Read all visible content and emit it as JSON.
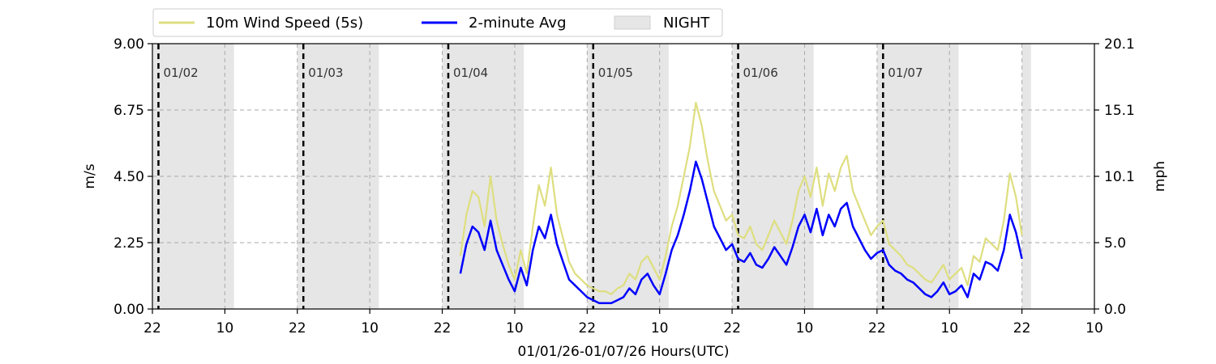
{
  "chart_data": {
    "type": "line",
    "xlabel": "01/01/26-01/07/26  Hours(UTC)",
    "ylabel_left": "m/s",
    "ylabel_right": "mph",
    "x_range_hours": [
      0,
      156
    ],
    "ylim": [
      0,
      9
    ],
    "y_ticks_left": [
      "0.00",
      "2.25",
      "4.50",
      "6.75",
      "9.00"
    ],
    "y_ticks_right": [
      "0.0",
      "5.0",
      "10.1",
      "15.1",
      "20.1"
    ],
    "x_tick_labels": [
      "22",
      "10",
      "22",
      "10",
      "22",
      "10",
      "22",
      "10",
      "22",
      "10",
      "22",
      "10",
      "22",
      "10"
    ],
    "day_labels": [
      "01/02",
      "01/03",
      "01/04",
      "01/05",
      "01/06",
      "01/07"
    ],
    "day_boundaries_hours": [
      1,
      25,
      49,
      73,
      97,
      121
    ],
    "night_periods_hours": [
      [
        0,
        13.5
      ],
      [
        24,
        37.5
      ],
      [
        48,
        61.5
      ],
      [
        72,
        85.5
      ],
      [
        96,
        109.5
      ],
      [
        120,
        133.5
      ],
      [
        144,
        145.5
      ]
    ],
    "legend": {
      "placement": "top",
      "items": [
        "10m Wind Speed (5s)",
        "2-minute Avg",
        "NIGHT"
      ]
    },
    "series": [
      {
        "name": "10m Wind Speed (5s)",
        "color": "#dede80",
        "x": [
          51,
          52,
          53,
          54,
          55,
          56,
          57,
          58,
          59,
          60,
          61,
          62,
          63,
          64,
          65,
          66,
          67,
          68,
          69,
          70,
          71,
          72,
          73,
          74,
          75,
          76,
          77,
          78,
          79,
          80,
          81,
          82,
          83,
          84,
          85,
          86,
          87,
          88,
          89,
          90,
          91,
          92,
          93,
          94,
          95,
          96,
          97,
          98,
          99,
          100,
          101,
          102,
          103,
          104,
          105,
          106,
          107,
          108,
          109,
          110,
          111,
          112,
          113,
          114,
          115,
          116,
          117,
          118,
          119,
          120,
          121,
          122,
          123,
          124,
          125,
          126,
          127,
          128,
          129,
          130,
          131,
          132,
          133,
          134,
          135,
          136,
          137,
          138,
          139,
          140,
          141,
          142,
          143,
          144
        ],
        "values": [
          1.8,
          3.2,
          4.0,
          3.8,
          2.8,
          4.5,
          3.0,
          2.2,
          1.5,
          1.0,
          2.0,
          1.2,
          2.8,
          4.2,
          3.5,
          4.8,
          3.2,
          2.4,
          1.6,
          1.2,
          1.0,
          0.8,
          0.7,
          0.6,
          0.6,
          0.5,
          0.7,
          0.8,
          1.2,
          1.0,
          1.6,
          1.8,
          1.4,
          1.0,
          1.8,
          2.8,
          3.5,
          4.5,
          5.5,
          7.0,
          6.2,
          5.0,
          4.0,
          3.5,
          3.0,
          3.2,
          2.5,
          2.4,
          2.8,
          2.2,
          2.0,
          2.5,
          3.0,
          2.6,
          2.2,
          3.0,
          4.0,
          4.5,
          3.8,
          4.8,
          3.5,
          4.6,
          4.0,
          4.8,
          5.2,
          4.0,
          3.5,
          3.0,
          2.5,
          2.8,
          3.0,
          2.2,
          2.0,
          1.8,
          1.5,
          1.4,
          1.2,
          1.0,
          0.9,
          1.2,
          1.5,
          1.0,
          1.2,
          1.4,
          0.8,
          1.8,
          1.6,
          2.4,
          2.2,
          2.0,
          3.0,
          4.6,
          3.8,
          2.5
        ]
      },
      {
        "name": "2-minute Avg",
        "color": "#0000ff",
        "x": [
          51,
          52,
          53,
          54,
          55,
          56,
          57,
          58,
          59,
          60,
          61,
          62,
          63,
          64,
          65,
          66,
          67,
          68,
          69,
          70,
          71,
          72,
          73,
          74,
          75,
          76,
          77,
          78,
          79,
          80,
          81,
          82,
          83,
          84,
          85,
          86,
          87,
          88,
          89,
          90,
          91,
          92,
          93,
          94,
          95,
          96,
          97,
          98,
          99,
          100,
          101,
          102,
          103,
          104,
          105,
          106,
          107,
          108,
          109,
          110,
          111,
          112,
          113,
          114,
          115,
          116,
          117,
          118,
          119,
          120,
          121,
          122,
          123,
          124,
          125,
          126,
          127,
          128,
          129,
          130,
          131,
          132,
          133,
          134,
          135,
          136,
          137,
          138,
          139,
          140,
          141,
          142,
          143,
          144
        ],
        "values": [
          1.2,
          2.2,
          2.8,
          2.6,
          2.0,
          3.0,
          2.0,
          1.5,
          1.0,
          0.6,
          1.4,
          0.8,
          2.0,
          2.8,
          2.4,
          3.2,
          2.2,
          1.6,
          1.0,
          0.8,
          0.6,
          0.4,
          0.3,
          0.2,
          0.2,
          0.2,
          0.3,
          0.4,
          0.7,
          0.5,
          1.0,
          1.2,
          0.8,
          0.5,
          1.2,
          2.0,
          2.5,
          3.2,
          4.0,
          5.0,
          4.4,
          3.6,
          2.8,
          2.4,
          2.0,
          2.2,
          1.7,
          1.6,
          1.9,
          1.5,
          1.4,
          1.7,
          2.1,
          1.8,
          1.5,
          2.1,
          2.8,
          3.2,
          2.6,
          3.4,
          2.5,
          3.2,
          2.8,
          3.4,
          3.6,
          2.8,
          2.4,
          2.0,
          1.7,
          1.9,
          2.0,
          1.5,
          1.3,
          1.2,
          1.0,
          0.9,
          0.7,
          0.5,
          0.4,
          0.6,
          0.9,
          0.5,
          0.6,
          0.8,
          0.4,
          1.2,
          1.0,
          1.6,
          1.5,
          1.3,
          2.0,
          3.2,
          2.6,
          1.7
        ]
      }
    ]
  }
}
